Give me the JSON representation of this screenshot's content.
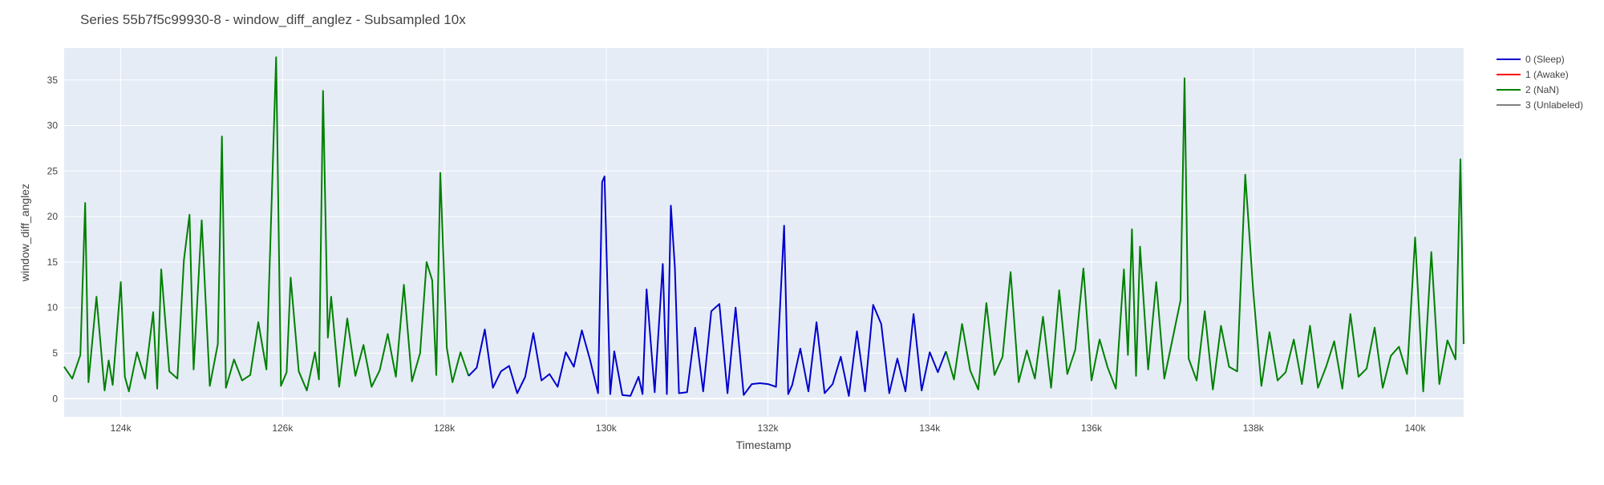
{
  "chart_data": {
    "type": "line",
    "title": "Series 55b7f5c99930-8 - window_diff_anglez - Subsampled 10x",
    "xlabel": "Timestamp",
    "ylabel": "window_diff_anglez",
    "xlim": [
      123300,
      140600
    ],
    "ylim": [
      -2,
      38.5
    ],
    "x_ticks": [
      124000,
      126000,
      128000,
      130000,
      132000,
      134000,
      136000,
      138000,
      140000
    ],
    "x_tick_labels": [
      "124k",
      "126k",
      "128k",
      "130k",
      "132k",
      "134k",
      "136k",
      "138k",
      "140k"
    ],
    "y_ticks": [
      0,
      5,
      10,
      15,
      20,
      25,
      30,
      35
    ],
    "y_tick_labels": [
      "0",
      "5",
      "10",
      "15",
      "20",
      "25",
      "30",
      "35"
    ],
    "grid": true,
    "legend_position": "top-right",
    "legend": [
      "0 (Sleep)",
      "1 (Awake)",
      "2 (NaN)",
      "3 (Unlabeled)"
    ],
    "colors": {
      "0 (Sleep)": "#0000cc",
      "1 (Awake)": "#ff0000",
      "2 (NaN)": "#008000",
      "3 (Unlabeled)": "#808080",
      "plot_bg": "#e5ecf6",
      "grid": "#ffffff"
    },
    "series": [
      {
        "name": "2 (NaN)",
        "segment": 1,
        "x": [
          123300,
          123400,
          123500,
          123560,
          123600,
          123700,
          123800,
          123850,
          123900,
          124000,
          124050,
          124100,
          124200,
          124300,
          124400,
          124450,
          124500,
          124600,
          124700,
          124780,
          124850,
          124900,
          125000,
          125100,
          125200,
          125250,
          125300,
          125400,
          125500,
          125600,
          125700,
          125800,
          125920,
          125980,
          126050,
          126100,
          126200,
          126300,
          126400,
          126450,
          126500,
          126560,
          126600,
          126700,
          126800,
          126900,
          127000,
          127100,
          127200,
          127300,
          127400,
          127500,
          127600,
          127700,
          127780,
          127850,
          127900,
          127950,
          128030,
          128100,
          128200,
          128300
        ],
        "y": [
          3.5,
          2.2,
          4.8,
          21.5,
          1.8,
          11.2,
          0.9,
          4.2,
          1.5,
          12.8,
          2.4,
          0.8,
          5.1,
          2.2,
          9.5,
          1.1,
          14.2,
          3.0,
          2.2,
          15.2,
          20.2,
          3.2,
          19.6,
          1.4,
          6.0,
          28.8,
          1.2,
          4.3,
          2.0,
          2.6,
          8.4,
          3.2,
          37.5,
          1.4,
          2.9,
          13.3,
          3.0,
          0.9,
          5.1,
          2.1,
          33.8,
          6.7,
          11.2,
          1.3,
          8.8,
          2.5,
          5.9,
          1.3,
          3.1,
          7.1,
          2.4,
          12.5,
          1.9,
          5.0,
          15.0,
          13.0,
          2.6,
          24.8,
          5.6,
          1.8,
          5.1,
          2.5
        ]
      },
      {
        "name": "0 (Sleep)",
        "x": [
          128300,
          128400,
          128500,
          128600,
          128700,
          128800,
          128900,
          129000,
          129100,
          129200,
          129300,
          129400,
          129500,
          129600,
          129700,
          129800,
          129900,
          129950,
          129980,
          130050,
          130100,
          130200,
          130300,
          130400,
          130450,
          130500,
          130600,
          130700,
          130750,
          130800,
          130850,
          130900,
          131000,
          131100,
          131200,
          131300,
          131400,
          131500,
          131600,
          131700,
          131800,
          131900,
          132000,
          132100,
          132200,
          132250,
          132300,
          132400,
          132500,
          132600,
          132700,
          132800,
          132900,
          133000,
          133100,
          133200,
          133300,
          133400,
          133500,
          133600,
          133700,
          133800,
          133900,
          134000,
          134100,
          134200
        ],
        "y": [
          2.5,
          3.4,
          7.6,
          1.2,
          3.0,
          3.6,
          0.6,
          2.4,
          7.2,
          2.0,
          2.7,
          1.3,
          5.1,
          3.5,
          7.5,
          4.3,
          0.6,
          23.8,
          24.4,
          0.5,
          5.2,
          0.4,
          0.3,
          2.4,
          0.5,
          12.0,
          0.7,
          14.8,
          0.5,
          21.2,
          14.4,
          0.6,
          0.7,
          7.8,
          0.8,
          9.6,
          10.4,
          0.6,
          10.0,
          0.4,
          1.6,
          1.7,
          1.6,
          1.3,
          19.0,
          0.5,
          1.5,
          5.5,
          0.8,
          8.4,
          0.6,
          1.6,
          4.6,
          0.3,
          7.4,
          0.8,
          10.3,
          8.2,
          0.6,
          4.4,
          0.8,
          9.3,
          0.9,
          5.1,
          2.9,
          5.2
        ]
      },
      {
        "name": "2 (NaN)",
        "segment": 2,
        "x": [
          134200,
          134300,
          134400,
          134500,
          134600,
          134700,
          134800,
          134900,
          135000,
          135100,
          135200,
          135300,
          135400,
          135500,
          135600,
          135700,
          135800,
          135900,
          136000,
          136100,
          136200,
          136300,
          136400,
          136450,
          136500,
          136550,
          136600,
          136700,
          136800,
          136900,
          137000,
          137100,
          137150,
          137200,
          137300,
          137400,
          137500,
          137600,
          137700,
          137800,
          137900,
          138000,
          138100,
          138200,
          138300,
          138400,
          138500,
          138600,
          138700,
          138800,
          138900,
          139000,
          139100,
          139200,
          139300,
          139400,
          139500,
          139600,
          139700,
          139800,
          139900,
          140000,
          140100,
          140200,
          140300,
          140400,
          140500,
          140560,
          140600
        ],
        "y": [
          5.2,
          2.1,
          8.2,
          3.1,
          1.0,
          10.5,
          2.6,
          4.6,
          13.9,
          1.8,
          5.3,
          2.2,
          9.0,
          1.2,
          11.9,
          2.7,
          5.4,
          14.3,
          2.0,
          6.5,
          3.4,
          1.1,
          14.2,
          4.8,
          18.6,
          2.5,
          16.7,
          3.2,
          12.8,
          2.2,
          6.5,
          10.8,
          35.2,
          4.4,
          2.0,
          9.6,
          1.0,
          8.0,
          3.5,
          3.0,
          24.6,
          11.7,
          1.4,
          7.3,
          2.0,
          2.9,
          6.5,
          1.6,
          8.0,
          1.2,
          3.5,
          6.3,
          1.1,
          9.3,
          2.4,
          3.3,
          7.8,
          1.2,
          4.7,
          5.7,
          2.7,
          17.7,
          0.8,
          16.1,
          1.6,
          6.4,
          4.3,
          26.3,
          6.0
        ]
      }
    ]
  }
}
